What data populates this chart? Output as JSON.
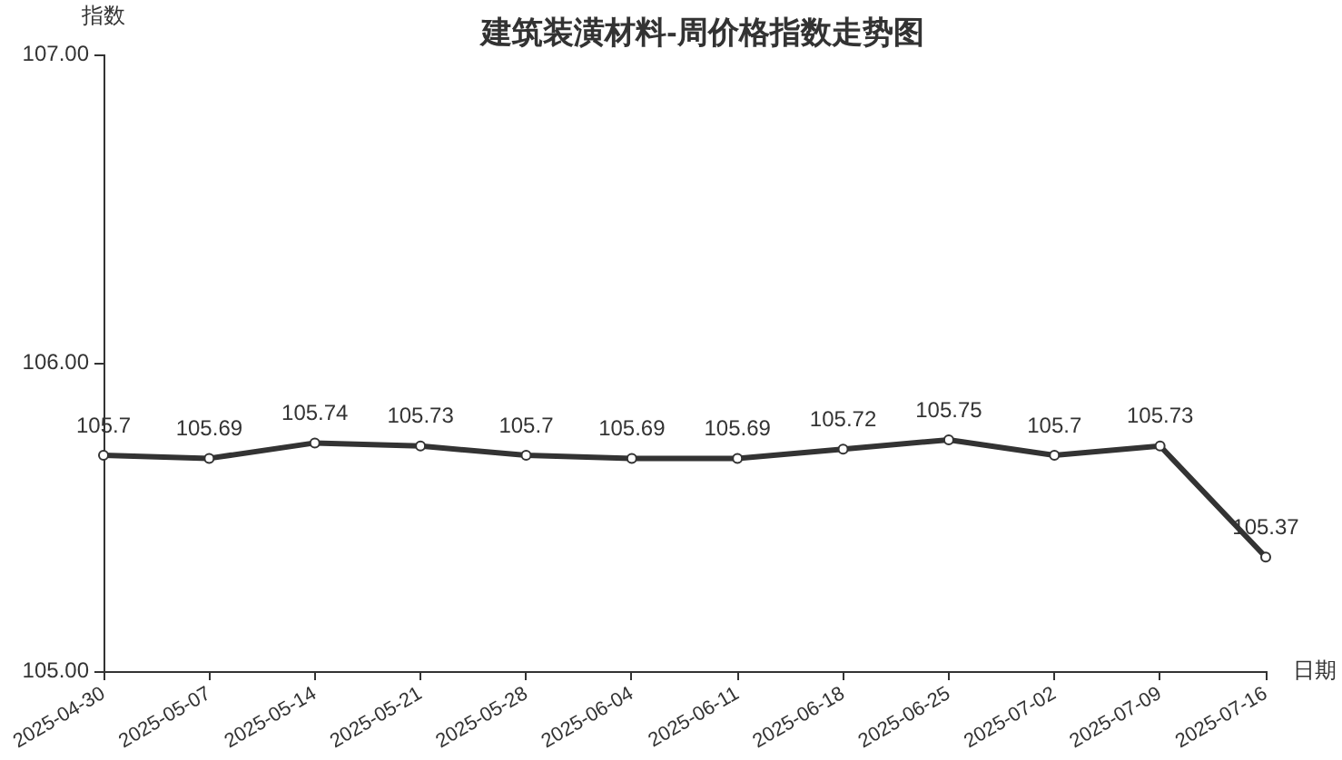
{
  "chart_data": {
    "type": "line",
    "title": "建筑装潢材料-周价格指数走势图",
    "xlabel": "日期",
    "ylabel": "指数",
    "categories": [
      "2025-04-30",
      "2025-05-07",
      "2025-05-14",
      "2025-05-21",
      "2025-05-28",
      "2025-06-04",
      "2025-06-11",
      "2025-06-18",
      "2025-06-25",
      "2025-07-02",
      "2025-07-09",
      "2025-07-16"
    ],
    "series": [
      {
        "color": "#333333",
        "values": [
          105.7,
          105.69,
          105.74,
          105.73,
          105.7,
          105.69,
          105.69,
          105.72,
          105.75,
          105.7,
          105.73,
          105.37
        ]
      }
    ],
    "ylim": [
      105,
      107
    ],
    "yticks": [
      {
        "value": 105,
        "label": "105.00"
      },
      {
        "value": 106,
        "label": "106.00"
      },
      {
        "value": 107,
        "label": "107.00"
      }
    ],
    "data_labels": true,
    "marker": "circle",
    "line_style": "solid",
    "grid": false,
    "legend": false
  }
}
